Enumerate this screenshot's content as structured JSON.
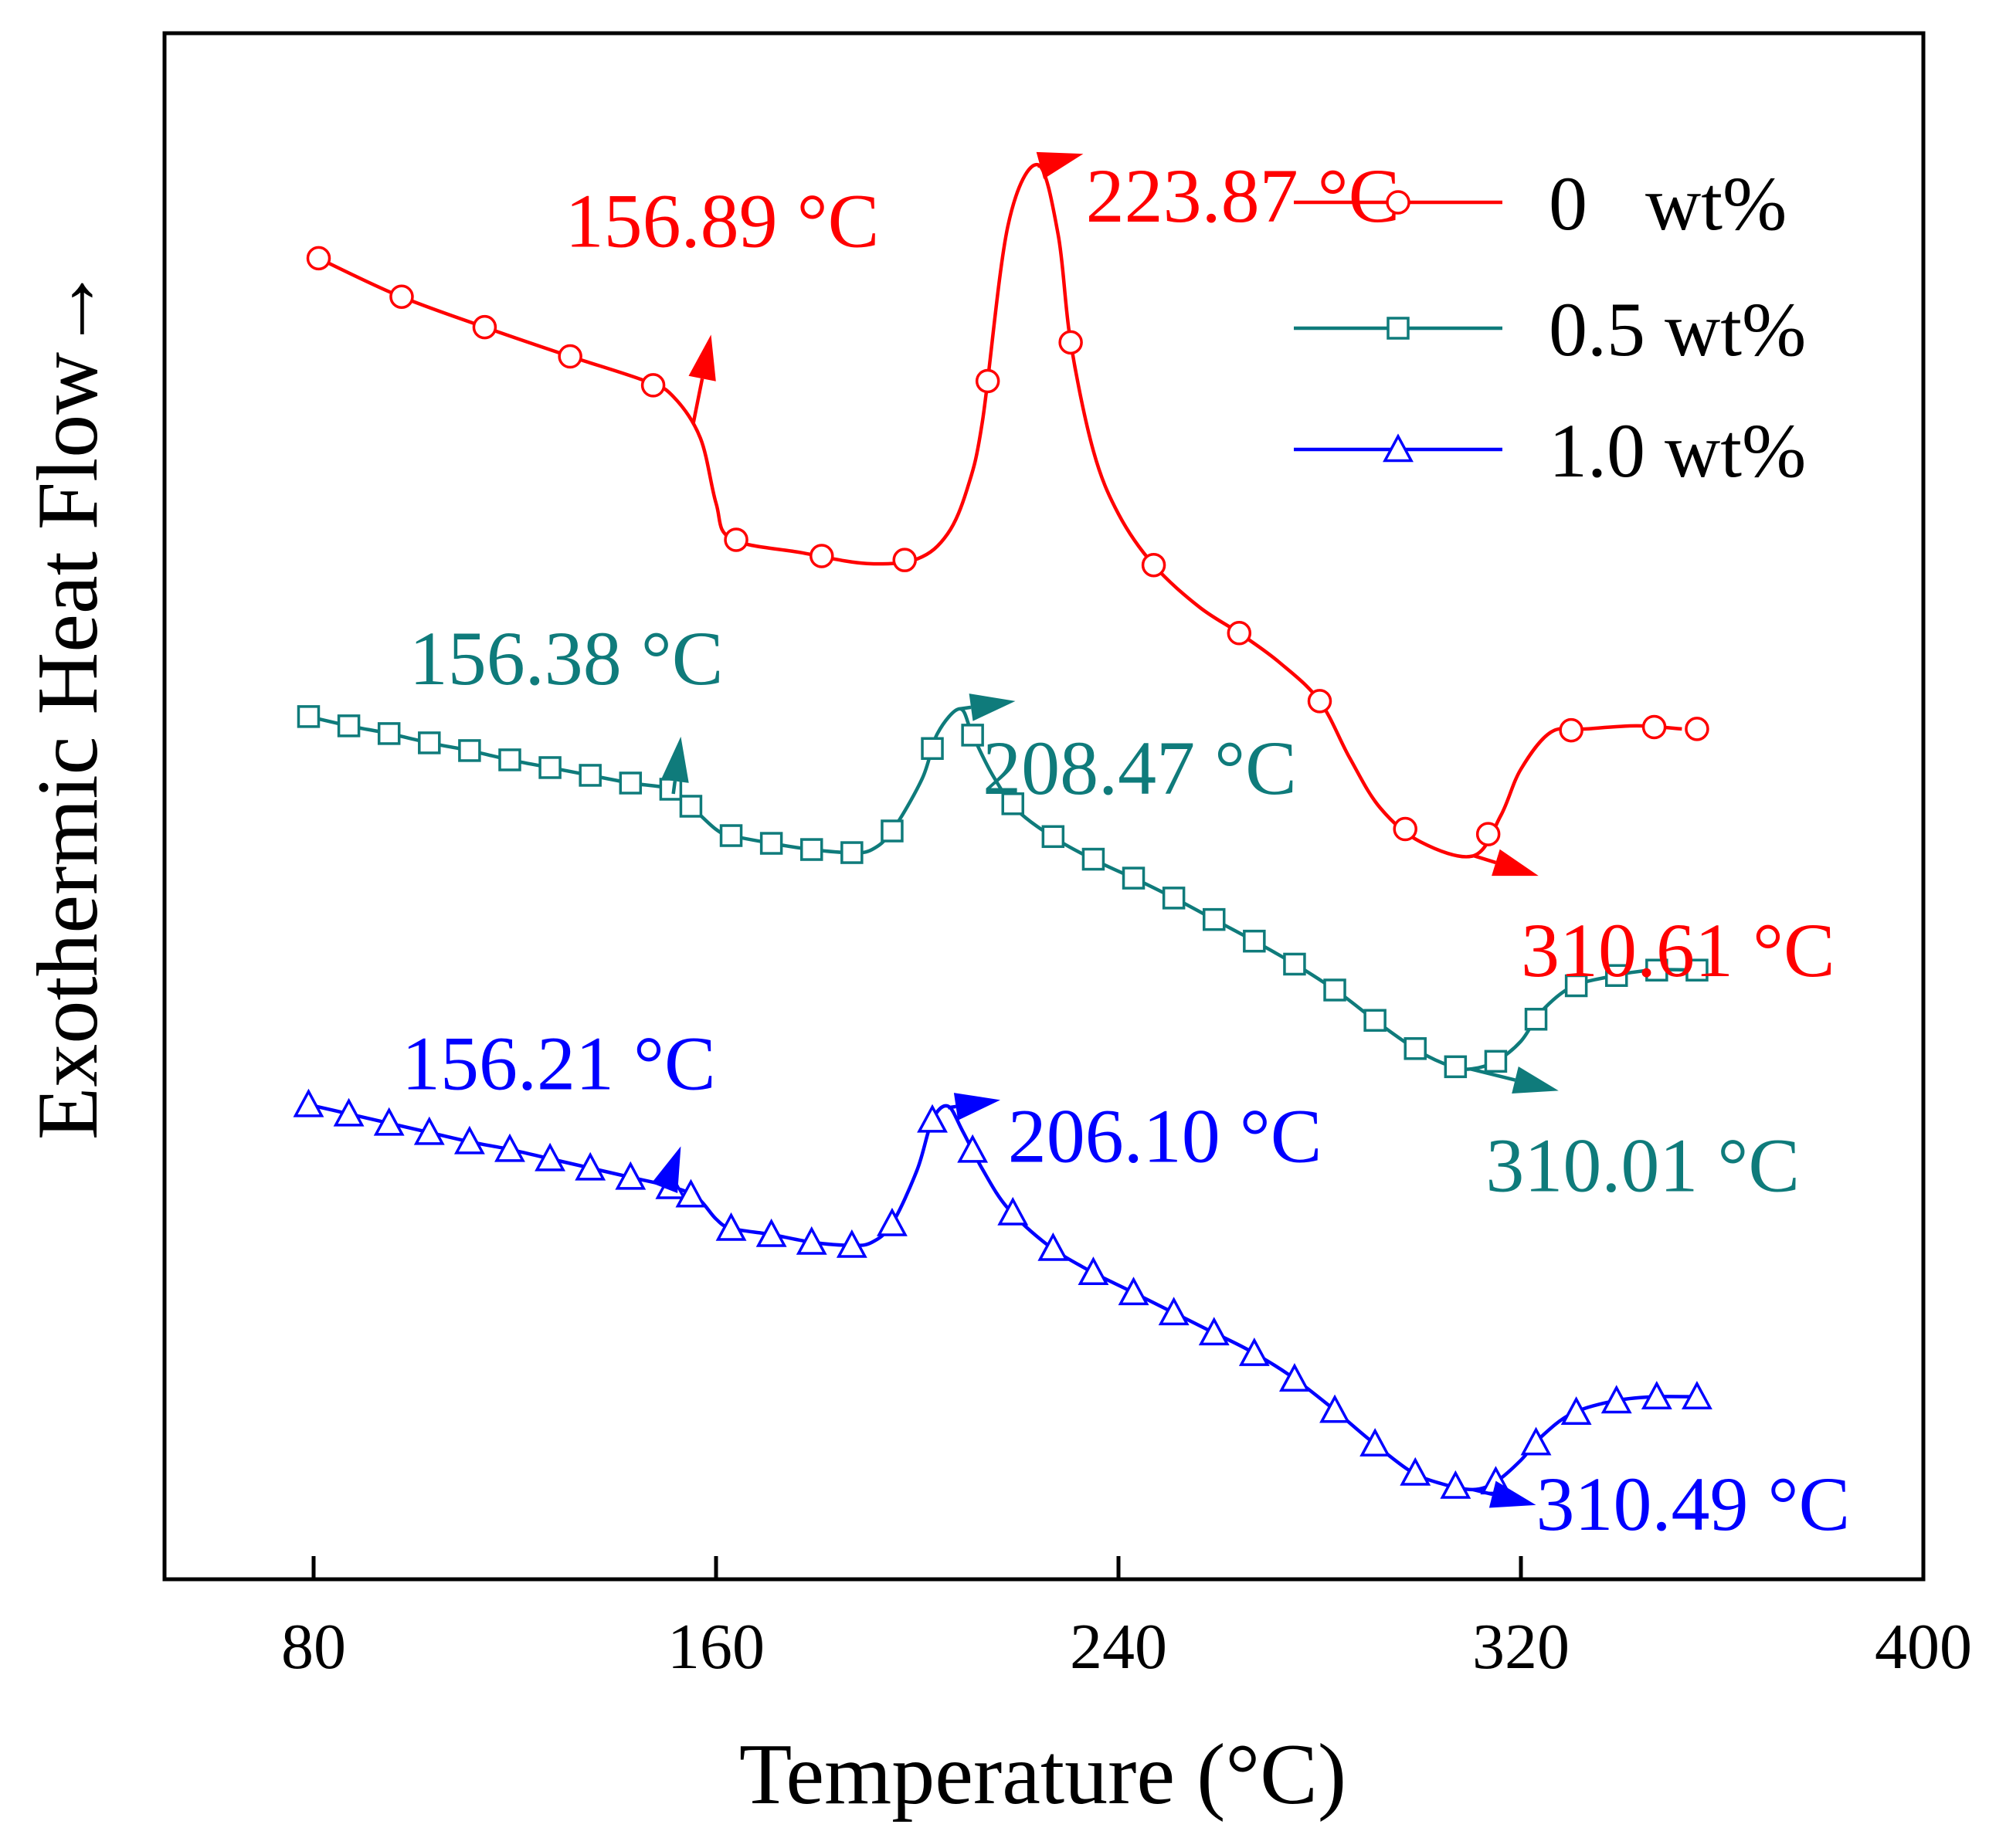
{
  "chart_data": {
    "type": "line",
    "title": "",
    "xlabel": "Temperature  (°C)",
    "ylabel": "Exothermic Heat Flow→",
    "xlim": [
      50,
      400
    ],
    "x_ticks": [
      80,
      160,
      240,
      320,
      400
    ],
    "ylim": [
      0,
      1
    ],
    "y_ticks_shown": false,
    "grid": false,
    "legend_position": "top-right",
    "series": [
      {
        "name": "0   wt%",
        "color": "#ff0000",
        "marker": "circle",
        "curve": [
          [
            80,
            0.856
          ],
          [
            96.3,
            0.831
          ],
          [
            113,
            0.811
          ],
          [
            130,
            0.792
          ],
          [
            146,
            0.775
          ],
          [
            151.5,
            0.765
          ],
          [
            156.9,
            0.738
          ],
          [
            160,
            0.696
          ],
          [
            163,
            0.673
          ],
          [
            177,
            0.664
          ],
          [
            190,
            0.657
          ],
          [
            200,
            0.66
          ],
          [
            206,
            0.676
          ],
          [
            210,
            0.706
          ],
          [
            213,
            0.75
          ],
          [
            218,
            0.875
          ],
          [
            223.9,
            0.915
          ],
          [
            228,
            0.87
          ],
          [
            230.5,
            0.8
          ],
          [
            235,
            0.73
          ],
          [
            240,
            0.689
          ],
          [
            247,
            0.656
          ],
          [
            256,
            0.629
          ],
          [
            264,
            0.612
          ],
          [
            272,
            0.593
          ],
          [
            280,
            0.568
          ],
          [
            286,
            0.531
          ],
          [
            292,
            0.499
          ],
          [
            300,
            0.477
          ],
          [
            310.6,
            0.468
          ],
          [
            316,
            0.494
          ],
          [
            320,
            0.524
          ],
          [
            326,
            0.548
          ],
          [
            333,
            0.55
          ],
          [
            343,
            0.552
          ],
          [
            352,
            0.55
          ]
        ],
        "markers_x": [
          81,
          97.5,
          114,
          131,
          147.5,
          164,
          181,
          197.5,
          214,
          230.5,
          247,
          264,
          280,
          297,
          313.5,
          330,
          346.5,
          355
        ]
      },
      {
        "name": "0.5 wt%",
        "color": "#0f7b7b",
        "marker": "square",
        "curve": [
          [
            79,
            0.558
          ],
          [
            87,
            0.552
          ],
          [
            95,
            0.547
          ],
          [
            103,
            0.541
          ],
          [
            111,
            0.536
          ],
          [
            119,
            0.53
          ],
          [
            127,
            0.525
          ],
          [
            135,
            0.52
          ],
          [
            143,
            0.515
          ],
          [
            151,
            0.511
          ],
          [
            155,
            0.5
          ],
          [
            160,
            0.485
          ],
          [
            163,
            0.481
          ],
          [
            171,
            0.476
          ],
          [
            179,
            0.472
          ],
          [
            187,
            0.47
          ],
          [
            191,
            0.472
          ],
          [
            195,
            0.484
          ],
          [
            201,
            0.518
          ],
          [
            204,
            0.547
          ],
          [
            208.5,
            0.563
          ],
          [
            211,
            0.546
          ],
          [
            215,
            0.52
          ],
          [
            220,
            0.497
          ],
          [
            228,
            0.478
          ],
          [
            236,
            0.464
          ],
          [
            244,
            0.452
          ],
          [
            252,
            0.439
          ],
          [
            260,
            0.425
          ],
          [
            268,
            0.411
          ],
          [
            276,
            0.396
          ],
          [
            284,
            0.379
          ],
          [
            292,
            0.359
          ],
          [
            300,
            0.341
          ],
          [
            306,
            0.332
          ],
          [
            310,
            0.33
          ],
          [
            315,
            0.335
          ],
          [
            320,
            0.348
          ],
          [
            324,
            0.367
          ],
          [
            330,
            0.383
          ],
          [
            338,
            0.39
          ],
          [
            346,
            0.394
          ],
          [
            356,
            0.394
          ]
        ],
        "markers_x": [
          79,
          87,
          95,
          103,
          111,
          119,
          127,
          135,
          143,
          151,
          155,
          163,
          171,
          179,
          187,
          195,
          203,
          211,
          219,
          227,
          235,
          243,
          251,
          259,
          267,
          275,
          283,
          291,
          299,
          307,
          315,
          323,
          331,
          339,
          347,
          355
        ]
      },
      {
        "name": "1.0 wt%",
        "color": "#0000ff",
        "marker": "triangle",
        "curve": [
          [
            79,
            0.307
          ],
          [
            87,
            0.301
          ],
          [
            95,
            0.295
          ],
          [
            103,
            0.289
          ],
          [
            111,
            0.283
          ],
          [
            119,
            0.278
          ],
          [
            127,
            0.272
          ],
          [
            135,
            0.266
          ],
          [
            143,
            0.26
          ],
          [
            151,
            0.254
          ],
          [
            156.2,
            0.247
          ],
          [
            160,
            0.233
          ],
          [
            163,
            0.227
          ],
          [
            171,
            0.223
          ],
          [
            179,
            0.218
          ],
          [
            187,
            0.216
          ],
          [
            191,
            0.218
          ],
          [
            195,
            0.23
          ],
          [
            200,
            0.265
          ],
          [
            203,
            0.297
          ],
          [
            206.1,
            0.306
          ],
          [
            209,
            0.29
          ],
          [
            213,
            0.265
          ],
          [
            218,
            0.24
          ],
          [
            226,
            0.216
          ],
          [
            234,
            0.2
          ],
          [
            242,
            0.187
          ],
          [
            250,
            0.174
          ],
          [
            258,
            0.161
          ],
          [
            266,
            0.148
          ],
          [
            274,
            0.132
          ],
          [
            282,
            0.112
          ],
          [
            290,
            0.09
          ],
          [
            298,
            0.07
          ],
          [
            304,
            0.062
          ],
          [
            310.5,
            0.058
          ],
          [
            315,
            0.063
          ],
          [
            320,
            0.077
          ],
          [
            324,
            0.092
          ],
          [
            330,
            0.107
          ],
          [
            338,
            0.115
          ],
          [
            346,
            0.118
          ],
          [
            356,
            0.118
          ]
        ],
        "markers_x": [
          79,
          87,
          95,
          103,
          111,
          119,
          127,
          135,
          143,
          151,
          155,
          163,
          171,
          179,
          187,
          195,
          203,
          211,
          219,
          227,
          235,
          243,
          251,
          259,
          267,
          275,
          283,
          291,
          299,
          307,
          315,
          323,
          331,
          339,
          347,
          355
        ]
      }
    ],
    "annotations": [
      {
        "text": "156.89 °C",
        "color": "#ff0000",
        "arrow": {
          "from": [
            155.5,
            0.748
          ],
          "to": [
            159,
            0.805
          ]
        },
        "label_at": [
          130,
          0.862
        ]
      },
      {
        "text": "223.87 °C",
        "color": "#ff0000",
        "arrow": {
          "from": [
            223.9,
            0.914
          ],
          "to": [
            233,
            0.922
          ]
        },
        "label_at": [
          233.5,
          0.878
        ]
      },
      {
        "text": "310.61 °C",
        "color": "#ff0000",
        "arrow": {
          "from": [
            310.6,
            0.468
          ],
          "to": [
            323.5,
            0.455
          ]
        },
        "label_at": [
          320,
          0.39
        ]
      },
      {
        "text": "156.38 °C",
        "color": "#0f7b7b",
        "arrow": {
          "from": [
            151.5,
            0.508
          ],
          "to": [
            153,
            0.545
          ]
        },
        "label_at": [
          99,
          0.579
        ]
      },
      {
        "text": "208.47 °C",
        "color": "#0f7b7b",
        "arrow": {
          "from": [
            208.5,
            0.563
          ],
          "to": [
            219.5,
            0.568
          ]
        },
        "label_at": [
          213,
          0.508
        ]
      },
      {
        "text": "310.01 °C",
        "color": "#0f7b7b",
        "arrow": {
          "from": [
            310,
            0.33
          ],
          "to": [
            327.5,
            0.316
          ]
        },
        "label_at": [
          313,
          0.251
        ]
      },
      {
        "text": "156.21 °C",
        "color": "#0000ff",
        "arrow": {
          "from": [
            150,
            0.255
          ],
          "to": [
            153,
            0.28
          ]
        },
        "label_at": [
          97.5,
          0.317
        ]
      },
      {
        "text": "206.10 °C",
        "color": "#0000ff",
        "arrow": {
          "from": [
            206.1,
            0.305
          ],
          "to": [
            216.5,
            0.31
          ]
        },
        "label_at": [
          218,
          0.27
        ]
      },
      {
        "text": "310.49 °C",
        "color": "#0000ff",
        "arrow": {
          "from": [
            310.5,
            0.058
          ],
          "to": [
            323,
            0.048
          ]
        },
        "label_at": [
          323,
          0.032
        ]
      }
    ]
  }
}
